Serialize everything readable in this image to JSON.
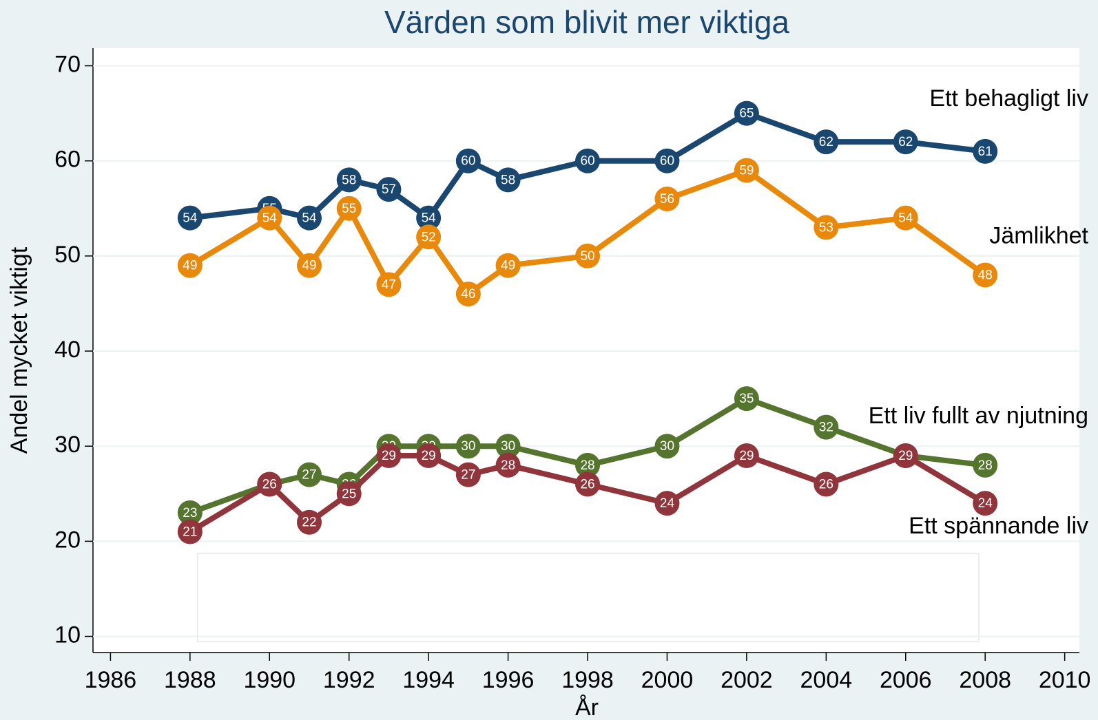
{
  "chart_data": {
    "type": "line",
    "title": "Värden som blivit mer viktiga",
    "x_label": "År",
    "y_label": "Andel mycket viktigt",
    "x": [
      1988,
      1990,
      1991,
      1992,
      1993,
      1994,
      1995,
      1996,
      1998,
      2000,
      2002,
      2004,
      2006,
      2008
    ],
    "series": [
      {
        "name": "Ett behagligt liv",
        "color": "#1a476f",
        "values": [
          54,
          55,
          54,
          58,
          57,
          54,
          60,
          58,
          60,
          60,
          65,
          62,
          62,
          61
        ]
      },
      {
        "name": "Jämlikhet",
        "color": "#e8890c",
        "values": [
          49,
          54,
          49,
          55,
          47,
          52,
          46,
          49,
          50,
          56,
          59,
          53,
          54,
          48
        ]
      },
      {
        "name": "Ett liv fullt av njutning",
        "color": "#55752f",
        "values": [
          23,
          26,
          27,
          26,
          30,
          30,
          30,
          30,
          28,
          30,
          35,
          32,
          29,
          28
        ]
      },
      {
        "name": "Ett spännande liv",
        "color": "#90353b",
        "values": [
          21,
          26,
          22,
          25,
          29,
          29,
          27,
          28,
          26,
          24,
          29,
          26,
          29,
          24
        ]
      }
    ],
    "xlim": [
      1985.56,
      2010.37
    ],
    "xticks": [
      1986,
      1988,
      1990,
      1992,
      1994,
      1996,
      1998,
      2000,
      2002,
      2004,
      2006,
      2008,
      2010
    ],
    "ylim": [
      8.3,
      71.85
    ],
    "yticks": [
      10,
      20,
      30,
      40,
      50,
      60,
      70
    ],
    "grid": true
  }
}
